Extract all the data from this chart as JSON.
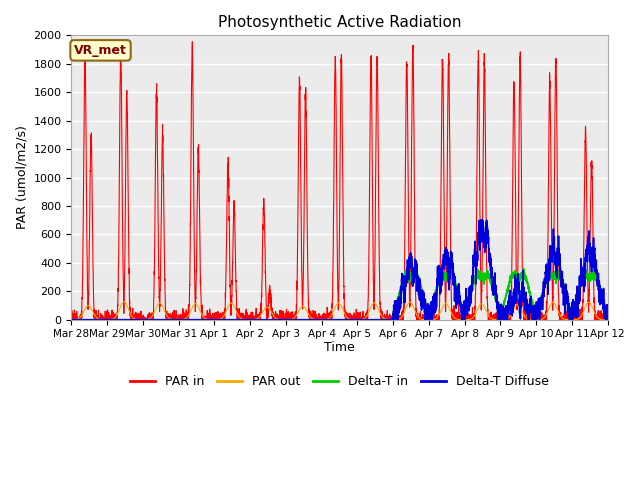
{
  "title": "Photosynthetic Active Radiation",
  "ylabel": "PAR (umol/m2/s)",
  "xlabel": "Time",
  "ylim": [
    0,
    2000
  ],
  "plot_bg_color": "#ebebeb",
  "fig_bg_color": "#ffffff",
  "legend_label": "VR_met",
  "legend_box_color": "#ffffcc",
  "legend_box_edge": "#8b6914",
  "par_in_color": "#ff0000",
  "par_out_color": "#ffaa00",
  "delta_t_in_color": "#00cc00",
  "delta_t_diffuse_color": "#0000dd",
  "x_tick_labels": [
    "Mar 28",
    "Mar 29",
    "Mar 30",
    "Mar 31",
    "Apr 1",
    "Apr 2",
    "Apr 3",
    "Apr 4",
    "Apr 5",
    "Apr 6",
    "Apr 7",
    "Apr 8",
    "Apr 9",
    "Apr 10",
    "Apr 11",
    "Apr 12"
  ],
  "num_days": 15
}
